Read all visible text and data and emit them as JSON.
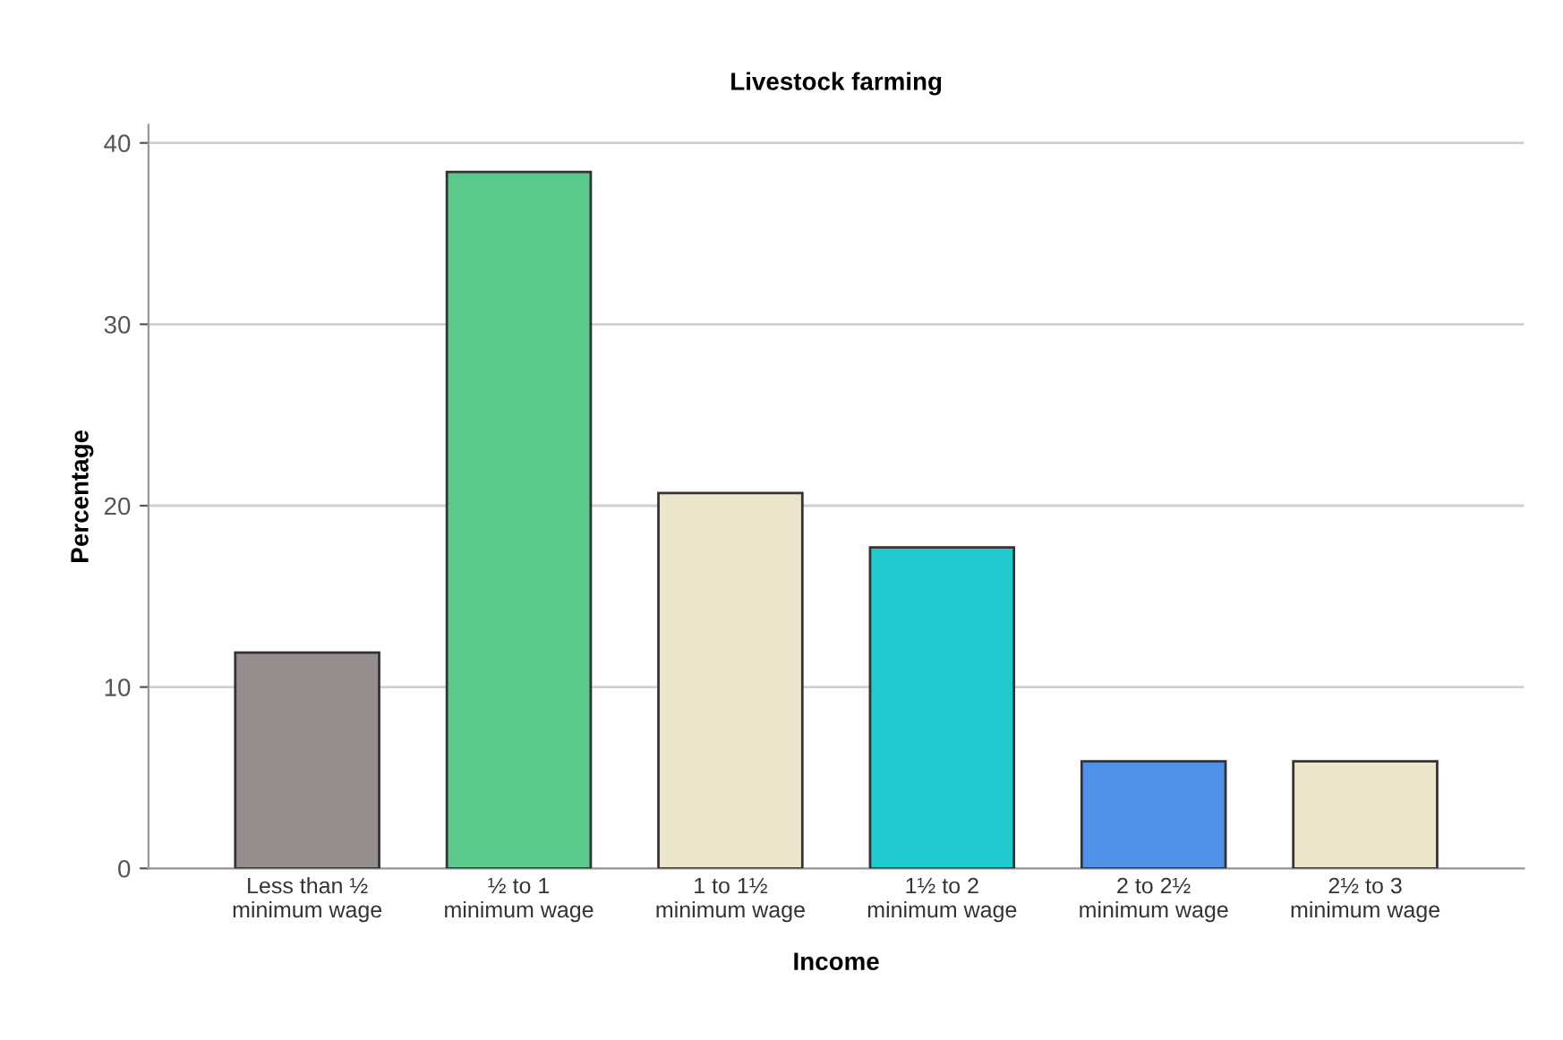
{
  "chart_data": {
    "type": "bar",
    "title": "Livestock farming",
    "xlabel": "Income",
    "ylabel": "Percentage",
    "categories": [
      "Less than ½ minimum wage",
      "½ to 1 minimum wage",
      "1 to 1½ minimum wage",
      "1½ to 2 minimum wage",
      "2 to 2½ minimum wage",
      "2½ to 3 minimum wage"
    ],
    "values": [
      11.9,
      38.4,
      20.7,
      17.7,
      5.9,
      5.9
    ],
    "colors": [
      "#958e8c",
      "#5bc98b",
      "#ece5cc",
      "#1fcace",
      "#4f91e8",
      "#ece5cc"
    ],
    "ylim": [
      0,
      41
    ],
    "yticks": [
      0,
      10,
      20,
      30,
      40
    ],
    "grid": "y"
  }
}
